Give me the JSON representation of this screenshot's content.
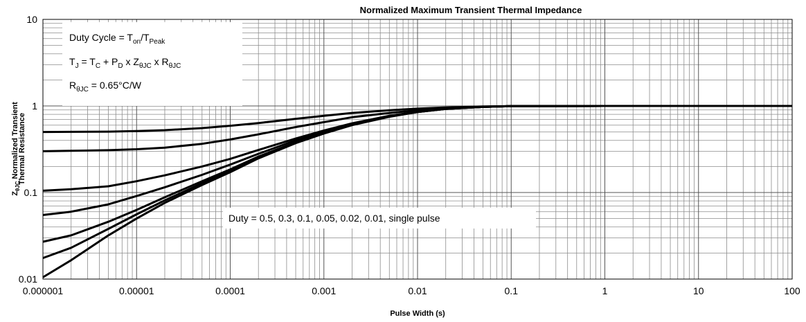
{
  "chart_data": {
    "type": "line",
    "title": "Normalized Maximum Transient Thermal Impedance",
    "xlabel": "Pulse Width (s)",
    "ylabel": "ZθJC Normalized Transient Thermal Resistance",
    "ylabel_parts": {
      "z": "Z",
      "sub": "θJC",
      "line1": " Normalized Transient",
      "line2": "Thermal Resistance"
    },
    "x_scale": "log",
    "y_scale": "log",
    "xlim": [
      1e-06,
      100
    ],
    "ylim": [
      0.01,
      10
    ],
    "x_tick_labels": [
      "0.000001",
      "0.00001",
      "0.0001",
      "0.001",
      "0.01",
      "0.1",
      "1",
      "10",
      "100"
    ],
    "y_tick_labels": [
      "10",
      "1",
      "0.1",
      "0.01"
    ],
    "grid": true,
    "annotations": {
      "box": {
        "line1": {
          "a": "Duty Cycle = T",
          "a_sub": "on",
          "b": "/T",
          "b_sub": "Peak"
        },
        "line2": {
          "a": "T",
          "a_sub": "J",
          "b": " = T",
          "b_sub": "C",
          "c": " + P",
          "c_sub": "D",
          "d": " x Z",
          "d_sub": "θJC",
          "e": " x R",
          "e_sub": "θJC"
        },
        "line3": {
          "a": "R",
          "a_sub": "θJC",
          "b": " = 0.65°C/W"
        }
      },
      "duty_label": "Duty = 0.5, 0.3, 0.1, 0.05, 0.02, 0.01, single pulse"
    },
    "x": [
      1e-06,
      2e-06,
      5e-06,
      1e-05,
      2e-05,
      5e-05,
      0.0001,
      0.0002,
      0.0005,
      0.001,
      0.002,
      0.005,
      0.01,
      0.02,
      0.05,
      0.1,
      1,
      10,
      100
    ],
    "series": [
      {
        "values": [
          0.5,
          0.502,
          0.505,
          0.512,
          0.525,
          0.555,
          0.59,
          0.635,
          0.71,
          0.77,
          0.83,
          0.89,
          0.93,
          0.96,
          0.985,
          0.995,
          1,
          1,
          1
        ]
      },
      {
        "values": [
          0.3,
          0.303,
          0.308,
          0.316,
          0.33,
          0.365,
          0.41,
          0.47,
          0.57,
          0.65,
          0.74,
          0.83,
          0.89,
          0.94,
          0.98,
          0.995,
          1,
          1,
          1
        ]
      },
      {
        "values": [
          0.105,
          0.109,
          0.118,
          0.135,
          0.158,
          0.2,
          0.245,
          0.31,
          0.42,
          0.52,
          0.63,
          0.77,
          0.86,
          0.93,
          0.975,
          0.995,
          1,
          1,
          1
        ]
      },
      {
        "values": [
          0.055,
          0.06,
          0.073,
          0.091,
          0.115,
          0.16,
          0.21,
          0.28,
          0.4,
          0.5,
          0.62,
          0.76,
          0.855,
          0.93,
          0.975,
          0.995,
          1,
          1,
          1
        ]
      },
      {
        "values": [
          0.027,
          0.032,
          0.046,
          0.063,
          0.088,
          0.135,
          0.185,
          0.26,
          0.38,
          0.49,
          0.61,
          0.76,
          0.85,
          0.925,
          0.975,
          0.995,
          1,
          1,
          1
        ]
      },
      {
        "values": [
          0.0175,
          0.023,
          0.038,
          0.056,
          0.081,
          0.128,
          0.178,
          0.253,
          0.376,
          0.485,
          0.605,
          0.755,
          0.85,
          0.925,
          0.975,
          0.995,
          1,
          1,
          1
        ]
      },
      {
        "values": [
          0.0105,
          0.0165,
          0.032,
          0.05,
          0.076,
          0.122,
          0.172,
          0.248,
          0.372,
          0.48,
          0.6,
          0.75,
          0.85,
          0.925,
          0.975,
          0.995,
          1,
          1,
          1
        ]
      }
    ]
  }
}
